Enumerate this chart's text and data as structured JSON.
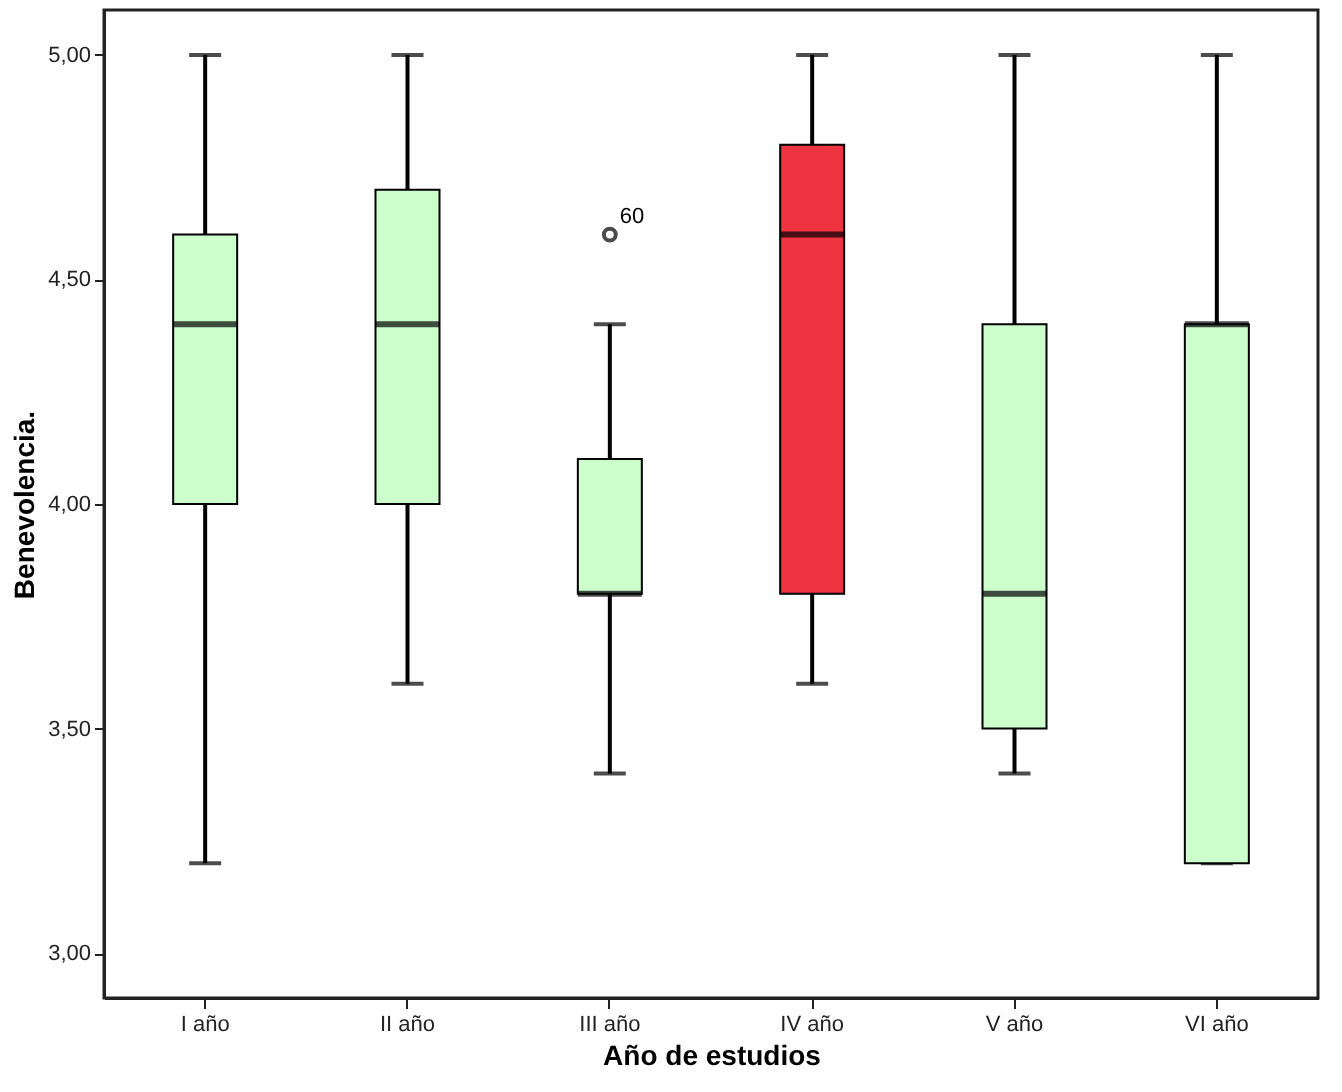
{
  "chart_data": {
    "type": "box",
    "xlabel": "Año de estudios",
    "ylabel": "Benevolencia.",
    "categories": [
      "I año",
      "II año",
      "III año",
      "IV año",
      "V año",
      "VI año"
    ],
    "colors": [
      "#ccffcc",
      "#ccffcc",
      "#ccffcc",
      "#ee3440",
      "#ccffcc",
      "#ccffcc"
    ],
    "boxes": [
      {
        "low": 3.2,
        "q1": 4.0,
        "median": 4.4,
        "q3": 4.6,
        "high": 5.0
      },
      {
        "low": 3.6,
        "q1": 4.0,
        "median": 4.4,
        "q3": 4.7,
        "high": 5.0
      },
      {
        "low": 3.4,
        "q1": 3.8,
        "median": 3.8,
        "q3": 4.1,
        "high": 4.4,
        "outliers": [
          4.6
        ]
      },
      {
        "low": 3.6,
        "q1": 3.8,
        "median": 4.6,
        "q3": 4.8,
        "high": 5.0
      },
      {
        "low": 3.4,
        "q1": 3.5,
        "median": 3.8,
        "q3": 4.4,
        "high": 5.0
      },
      {
        "low": 3.2,
        "q1": 3.2,
        "median": 4.4,
        "q3": 4.4,
        "high": 5.0
      }
    ],
    "ylim": [
      2.9,
      5.1
    ],
    "yticks": [
      {
        "value": 3.0,
        "label": "3,00"
      },
      {
        "value": 3.5,
        "label": "3,50"
      },
      {
        "value": 4.0,
        "label": "4,00"
      },
      {
        "value": 4.5,
        "label": "4,50"
      },
      {
        "value": 5.0,
        "label": "5,00"
      }
    ],
    "annotations": [
      "60"
    ],
    "grid": false,
    "legend": false
  }
}
